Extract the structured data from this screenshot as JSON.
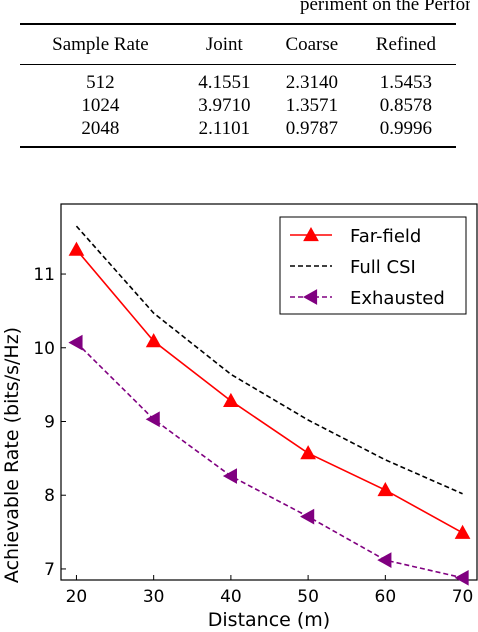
{
  "clipped_caption": "periment on the Performance with Different Sampling",
  "table": {
    "headers": [
      "Sample Rate",
      "Joint",
      "Coarse",
      "Refined"
    ],
    "rows": [
      [
        "512",
        "4.1551",
        "2.3140",
        "1.5453"
      ],
      [
        "1024",
        "3.9710",
        "1.3571",
        "0.8578"
      ],
      [
        "2048",
        "2.1101",
        "0.9787",
        "0.9996"
      ]
    ]
  },
  "chart_data": {
    "type": "line",
    "xlabel": "Distance (m)",
    "ylabel": "Achievable Rate (bits/s/Hz)",
    "x": [
      20,
      30,
      40,
      50,
      60,
      70
    ],
    "xlim": [
      18,
      72
    ],
    "ylim": [
      6.85,
      11.95
    ],
    "xticks": [
      20,
      30,
      40,
      50,
      60,
      70
    ],
    "yticks": [
      7,
      8,
      9,
      10,
      11
    ],
    "grid": false,
    "legend_position": "top-right",
    "series": [
      {
        "name": "Far-field",
        "values": [
          11.33,
          10.09,
          9.28,
          8.57,
          8.07,
          7.49
        ],
        "color": "#ff0000",
        "line": "solid",
        "marker": "triangle-up"
      },
      {
        "name": "Full CSI",
        "values": [
          11.65,
          10.47,
          9.64,
          9.02,
          8.48,
          8.02
        ],
        "color": "#000000",
        "line": "dashed",
        "marker": "none"
      },
      {
        "name": "Exhausted",
        "values": [
          10.07,
          9.03,
          8.26,
          7.71,
          7.12,
          6.88
        ],
        "color": "#800080",
        "line": "dashed",
        "marker": "triangle-left"
      }
    ]
  }
}
